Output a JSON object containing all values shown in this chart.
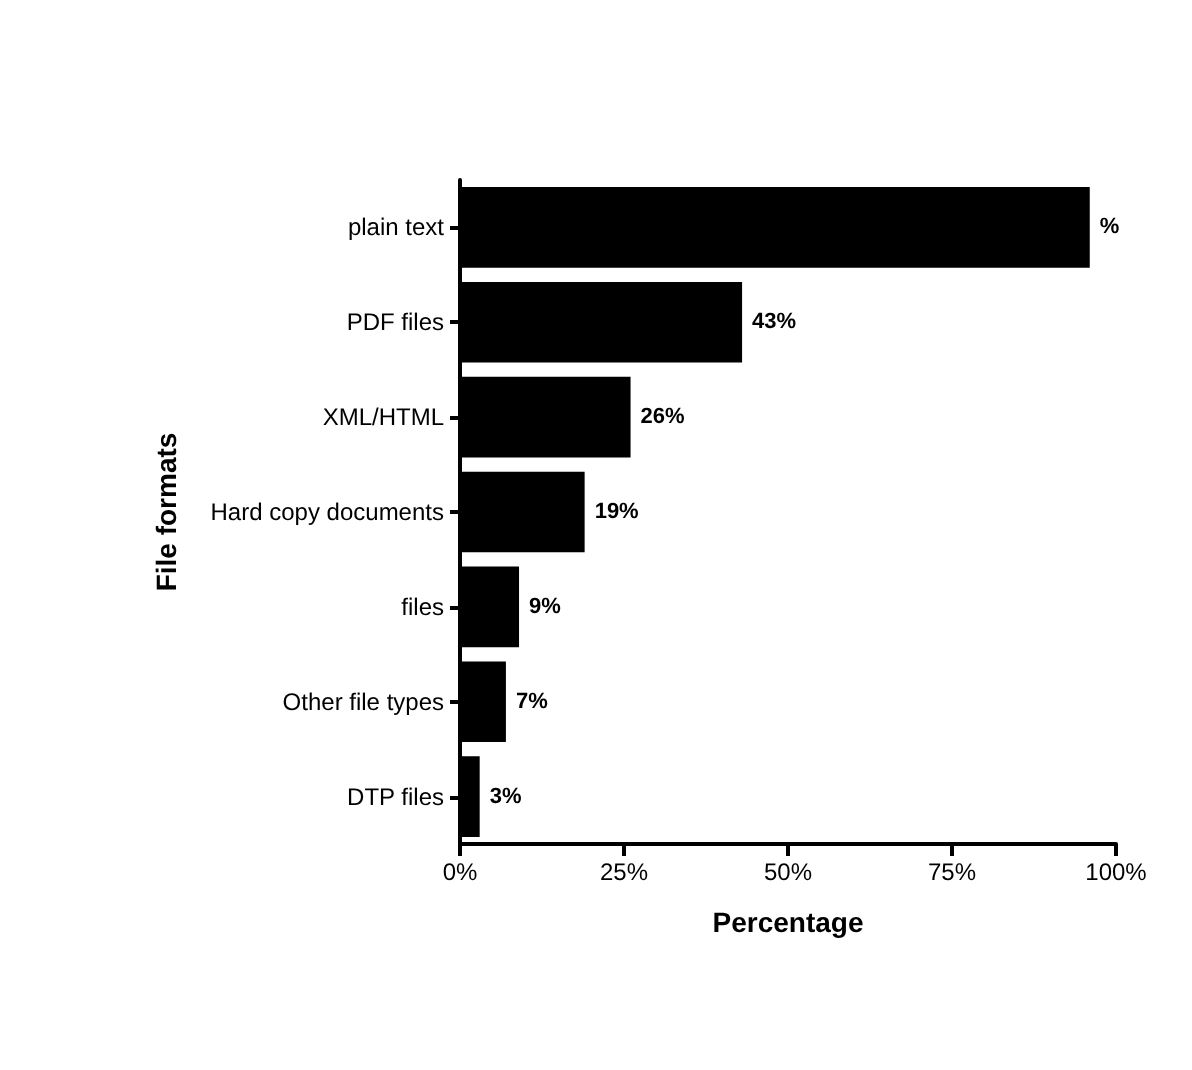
{
  "chart_data": {
    "type": "bar",
    "orientation": "horizontal",
    "xlabel": "Percentage",
    "ylabel": "File formats",
    "categories": [
      "plain text",
      "PDF files",
      "XML/HTML",
      "Hard copy documents",
      "files",
      "Other file types",
      "DTP files"
    ],
    "values": [
      96,
      43,
      26,
      19,
      9,
      7,
      3
    ],
    "value_labels": [
      "%",
      "43%",
      "26%",
      "19%",
      "9%",
      "7%",
      "3%"
    ],
    "color": "#000000",
    "xlim": [
      0,
      100
    ],
    "xticks": [
      {
        "value": 0,
        "label": "0%"
      },
      {
        "value": 25,
        "label": "25%"
      },
      {
        "value": 50,
        "label": "50%"
      },
      {
        "value": 75,
        "label": "75%"
      },
      {
        "value": 100,
        "label": "100%"
      }
    ],
    "grid": false
  }
}
